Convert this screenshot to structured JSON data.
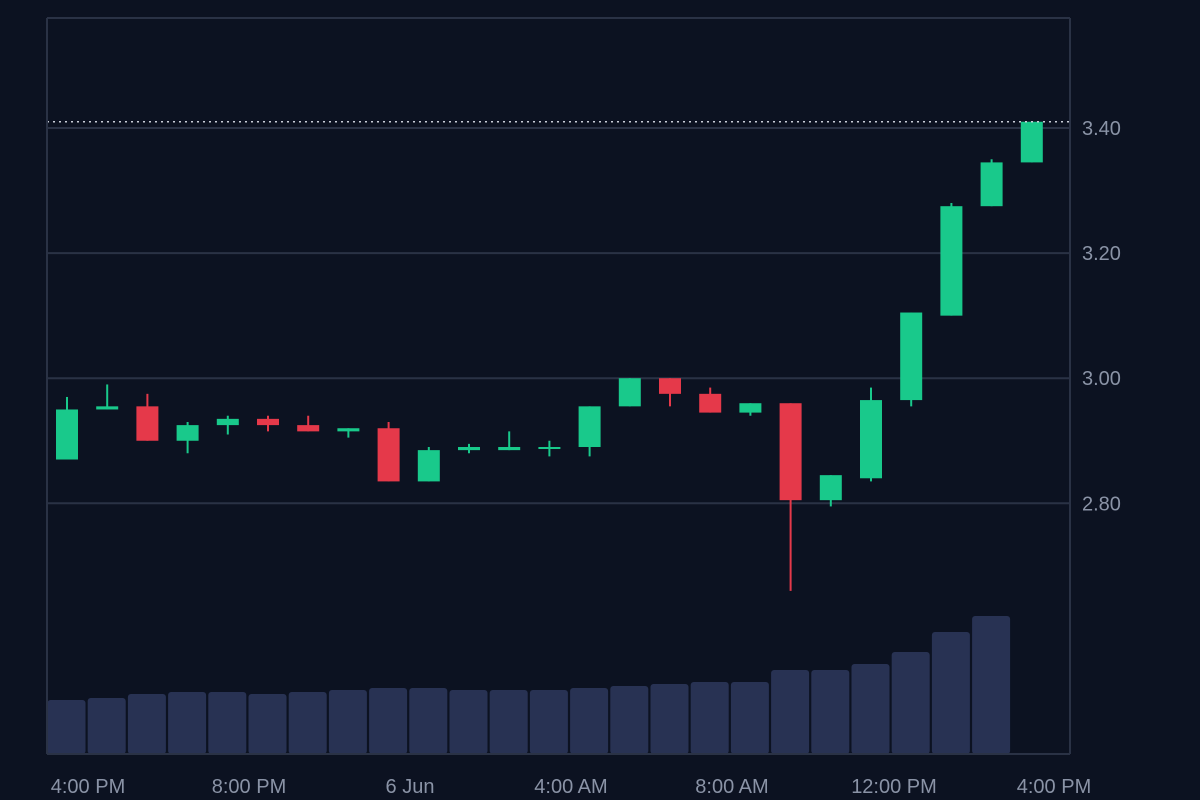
{
  "chart_data": {
    "type": "candlestick",
    "title": "",
    "xlabel": "",
    "ylabel": "",
    "ylim": [
      2.56,
      3.6
    ],
    "grid": true,
    "price_ticks": [
      3.4,
      3.2,
      3.0,
      2.8
    ],
    "price_tick_labels": [
      "3.40",
      "3.20",
      "3.00",
      "2.80"
    ],
    "time_labels": [
      "4:00 PM",
      "8:00 PM",
      "6 Jun",
      "4:00 AM",
      "8:00 AM",
      "12:00 PM",
      "4:00 PM"
    ],
    "current_price": 3.41,
    "colors": {
      "background": "#0c1221",
      "up": "#19c98b",
      "down": "#e5394a",
      "volume": "#283253",
      "grid": "#2a3245",
      "text": "#8a93a6"
    },
    "candles": [
      {
        "open": 2.87,
        "high": 2.97,
        "low": 2.87,
        "close": 2.95
      },
      {
        "open": 2.95,
        "high": 2.99,
        "low": 2.95,
        "close": 2.955
      },
      {
        "open": 2.955,
        "high": 2.975,
        "low": 2.9,
        "close": 2.9
      },
      {
        "open": 2.9,
        "high": 2.93,
        "low": 2.88,
        "close": 2.925
      },
      {
        "open": 2.925,
        "high": 2.94,
        "low": 2.91,
        "close": 2.935
      },
      {
        "open": 2.935,
        "high": 2.94,
        "low": 2.915,
        "close": 2.925
      },
      {
        "open": 2.925,
        "high": 2.94,
        "low": 2.915,
        "close": 2.915
      },
      {
        "open": 2.915,
        "high": 2.92,
        "low": 2.905,
        "close": 2.92
      },
      {
        "open": 2.92,
        "high": 2.93,
        "low": 2.835,
        "close": 2.835
      },
      {
        "open": 2.835,
        "high": 2.89,
        "low": 2.835,
        "close": 2.885
      },
      {
        "open": 2.885,
        "high": 2.895,
        "low": 2.88,
        "close": 2.89
      },
      {
        "open": 2.885,
        "high": 2.915,
        "low": 2.885,
        "close": 2.89
      },
      {
        "open": 2.89,
        "high": 2.9,
        "low": 2.875,
        "close": 2.89
      },
      {
        "open": 2.89,
        "high": 2.955,
        "low": 2.875,
        "close": 2.955
      },
      {
        "open": 2.955,
        "high": 3.0,
        "low": 2.955,
        "close": 3.0
      },
      {
        "open": 3.0,
        "high": 3.0,
        "low": 2.955,
        "close": 2.975
      },
      {
        "open": 2.975,
        "high": 2.985,
        "low": 2.945,
        "close": 2.945
      },
      {
        "open": 2.945,
        "high": 2.96,
        "low": 2.94,
        "close": 2.96
      },
      {
        "open": 2.96,
        "high": 2.96,
        "low": 2.66,
        "close": 2.805
      },
      {
        "open": 2.805,
        "high": 2.845,
        "low": 2.795,
        "close": 2.845
      },
      {
        "open": 2.84,
        "high": 2.985,
        "low": 2.835,
        "close": 2.965
      },
      {
        "open": 2.965,
        "high": 3.105,
        "low": 2.955,
        "close": 3.105
      },
      {
        "open": 3.1,
        "high": 3.28,
        "low": 3.1,
        "close": 3.275
      },
      {
        "open": 3.275,
        "high": 3.35,
        "low": 3.275,
        "close": 3.345
      },
      {
        "open": 3.345,
        "high": 3.41,
        "low": 3.345,
        "close": 3.41
      }
    ],
    "volume": [
      54,
      56,
      60,
      62,
      62,
      60,
      62,
      64,
      66,
      66,
      64,
      64,
      64,
      66,
      68,
      70,
      72,
      72,
      84,
      84,
      90,
      102,
      122,
      138,
      0
    ]
  }
}
